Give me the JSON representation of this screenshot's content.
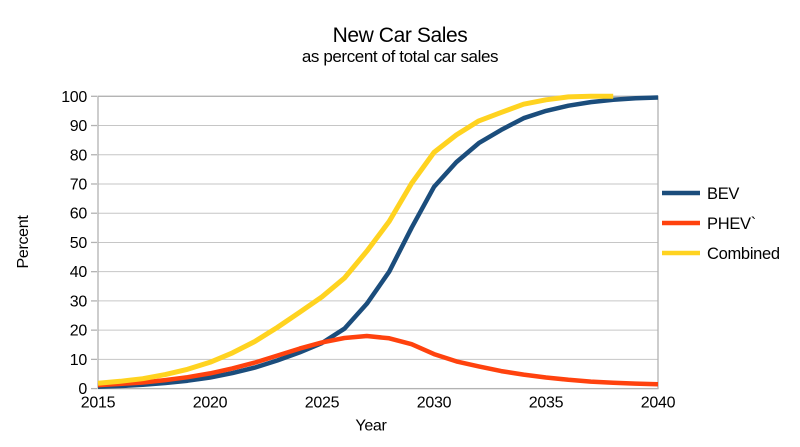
{
  "title": "New Car Sales",
  "subtitle": "as percent of total car sales",
  "colors": {
    "background": "#ffffff",
    "gridline": "#c6c6c6",
    "frame": "#b2b2b2",
    "text": "#000000",
    "bev": "#1b4d7c",
    "phev": "#ff420e",
    "combined": "#ffd320"
  },
  "chart_data": {
    "type": "line",
    "title": "New Car Sales",
    "subtitle": "as percent of total car sales",
    "xlabel": "Year",
    "ylabel": "Percent",
    "xlim": [
      2015,
      2040
    ],
    "ylim": [
      0,
      100
    ],
    "x_ticks": [
      "2015",
      "2020",
      "2025",
      "2030",
      "2035",
      "2040"
    ],
    "y_ticks": [
      "0",
      "10",
      "20",
      "30",
      "40",
      "50",
      "60",
      "70",
      "80",
      "90",
      "100"
    ],
    "grid": true,
    "legend_position": "right-outside",
    "categories": [
      2015,
      2016,
      2017,
      2018,
      2019,
      2020,
      2021,
      2022,
      2023,
      2024,
      2025,
      2026,
      2027,
      2028,
      2029,
      2030,
      2031,
      2032,
      2033,
      2034,
      2035,
      2036,
      2037,
      2038,
      2039,
      2040
    ],
    "series": [
      {
        "name": "BEV",
        "color": "#1b4d7c",
        "values": [
          0.6,
          0.9,
          1.3,
          1.9,
          2.7,
          3.8,
          5.3,
          7.2,
          9.6,
          12.4,
          15.6,
          20.5,
          29,
          40,
          55,
          69,
          77.5,
          84,
          88.5,
          92.5,
          95,
          96.8,
          98,
          98.8,
          99.3,
          99.6
        ]
      },
      {
        "name": "PHEV`",
        "color": "#ff420e",
        "values": [
          1.2,
          1.6,
          2.1,
          2.9,
          3.9,
          5.2,
          6.9,
          8.9,
          11.3,
          13.7,
          15.8,
          17.3,
          18,
          17.2,
          15.2,
          11.8,
          9.3,
          7.6,
          6,
          4.8,
          3.8,
          3,
          2.4,
          2,
          1.7,
          1.5
        ]
      },
      {
        "name": "Combined",
        "color": "#ffd320",
        "values": [
          1.8,
          2.5,
          3.4,
          4.8,
          6.6,
          9,
          12.2,
          16.1,
          20.9,
          26.1,
          31.4,
          37.8,
          47,
          57.2,
          70.2,
          80.8,
          86.8,
          91.6,
          94.5,
          97.3,
          98.8,
          99.8,
          100,
          100,
          null,
          null
        ]
      }
    ]
  }
}
